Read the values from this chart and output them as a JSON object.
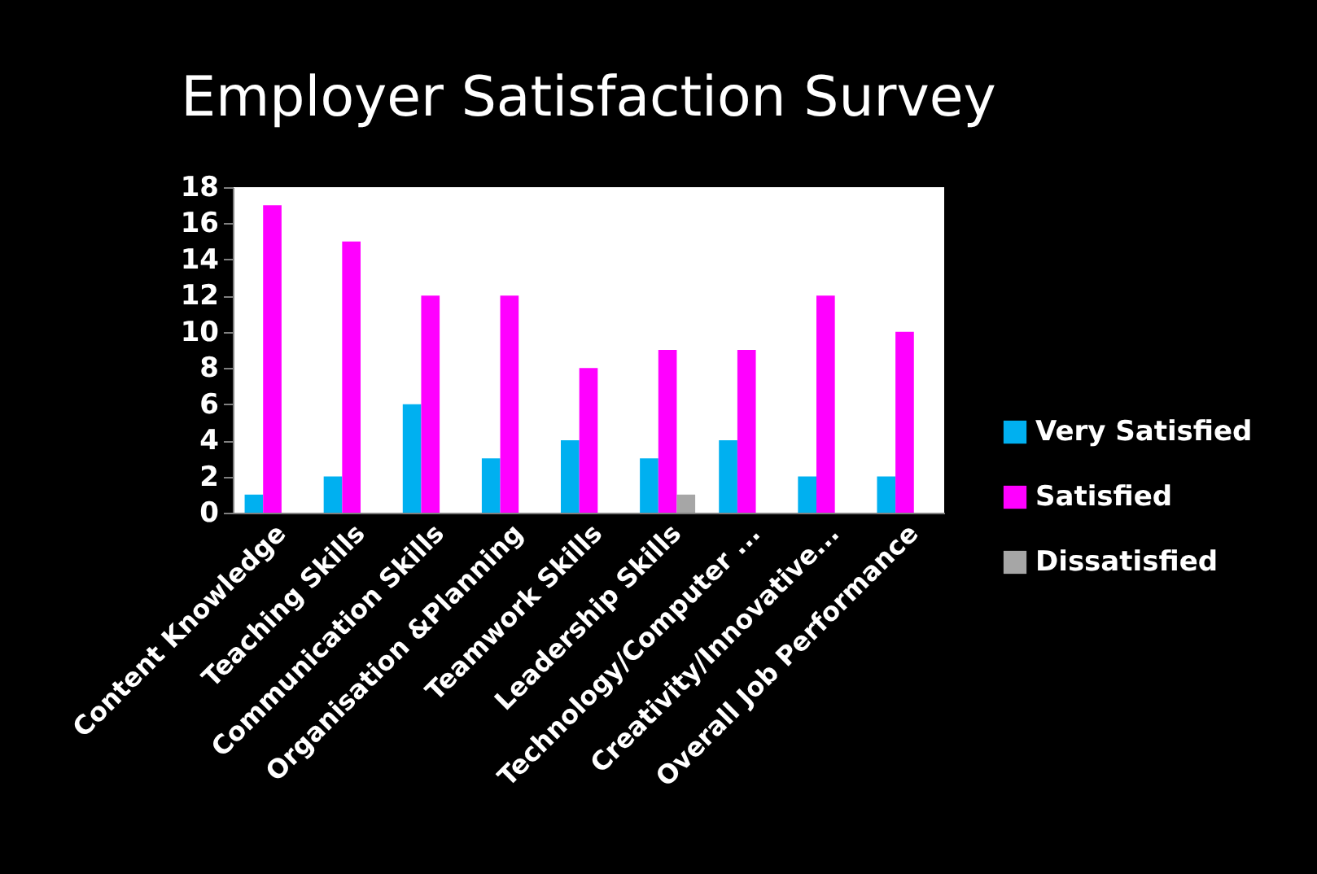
{
  "chart_data": {
    "type": "bar",
    "title": "Employer Satisfaction Survey",
    "categories": [
      "Content Knowledge",
      "Teaching Skills",
      "Communication Skills",
      "Organisation &Planning",
      "Teamwork Skills",
      "Leadership Skills",
      "Technology/Computer ...",
      "Creativity/Innovative...",
      "Overall Job Performance"
    ],
    "series": [
      {
        "name": "Very Satisfied",
        "color": "#00b0f0",
        "values": [
          1,
          2,
          6,
          3,
          4,
          3,
          4,
          2,
          2
        ]
      },
      {
        "name": "Satisfied",
        "color": "#ff00ff",
        "values": [
          17,
          15,
          12,
          12,
          8,
          9,
          9,
          12,
          10
        ]
      },
      {
        "name": "Dissatisfied",
        "color": "#a6a6a6",
        "values": [
          null,
          null,
          null,
          null,
          null,
          1,
          null,
          null,
          null
        ]
      }
    ],
    "ylim": [
      0,
      18
    ],
    "yticks": [
      0,
      2,
      4,
      6,
      8,
      10,
      12,
      14,
      16,
      18
    ],
    "grid": false,
    "legend": "right"
  }
}
